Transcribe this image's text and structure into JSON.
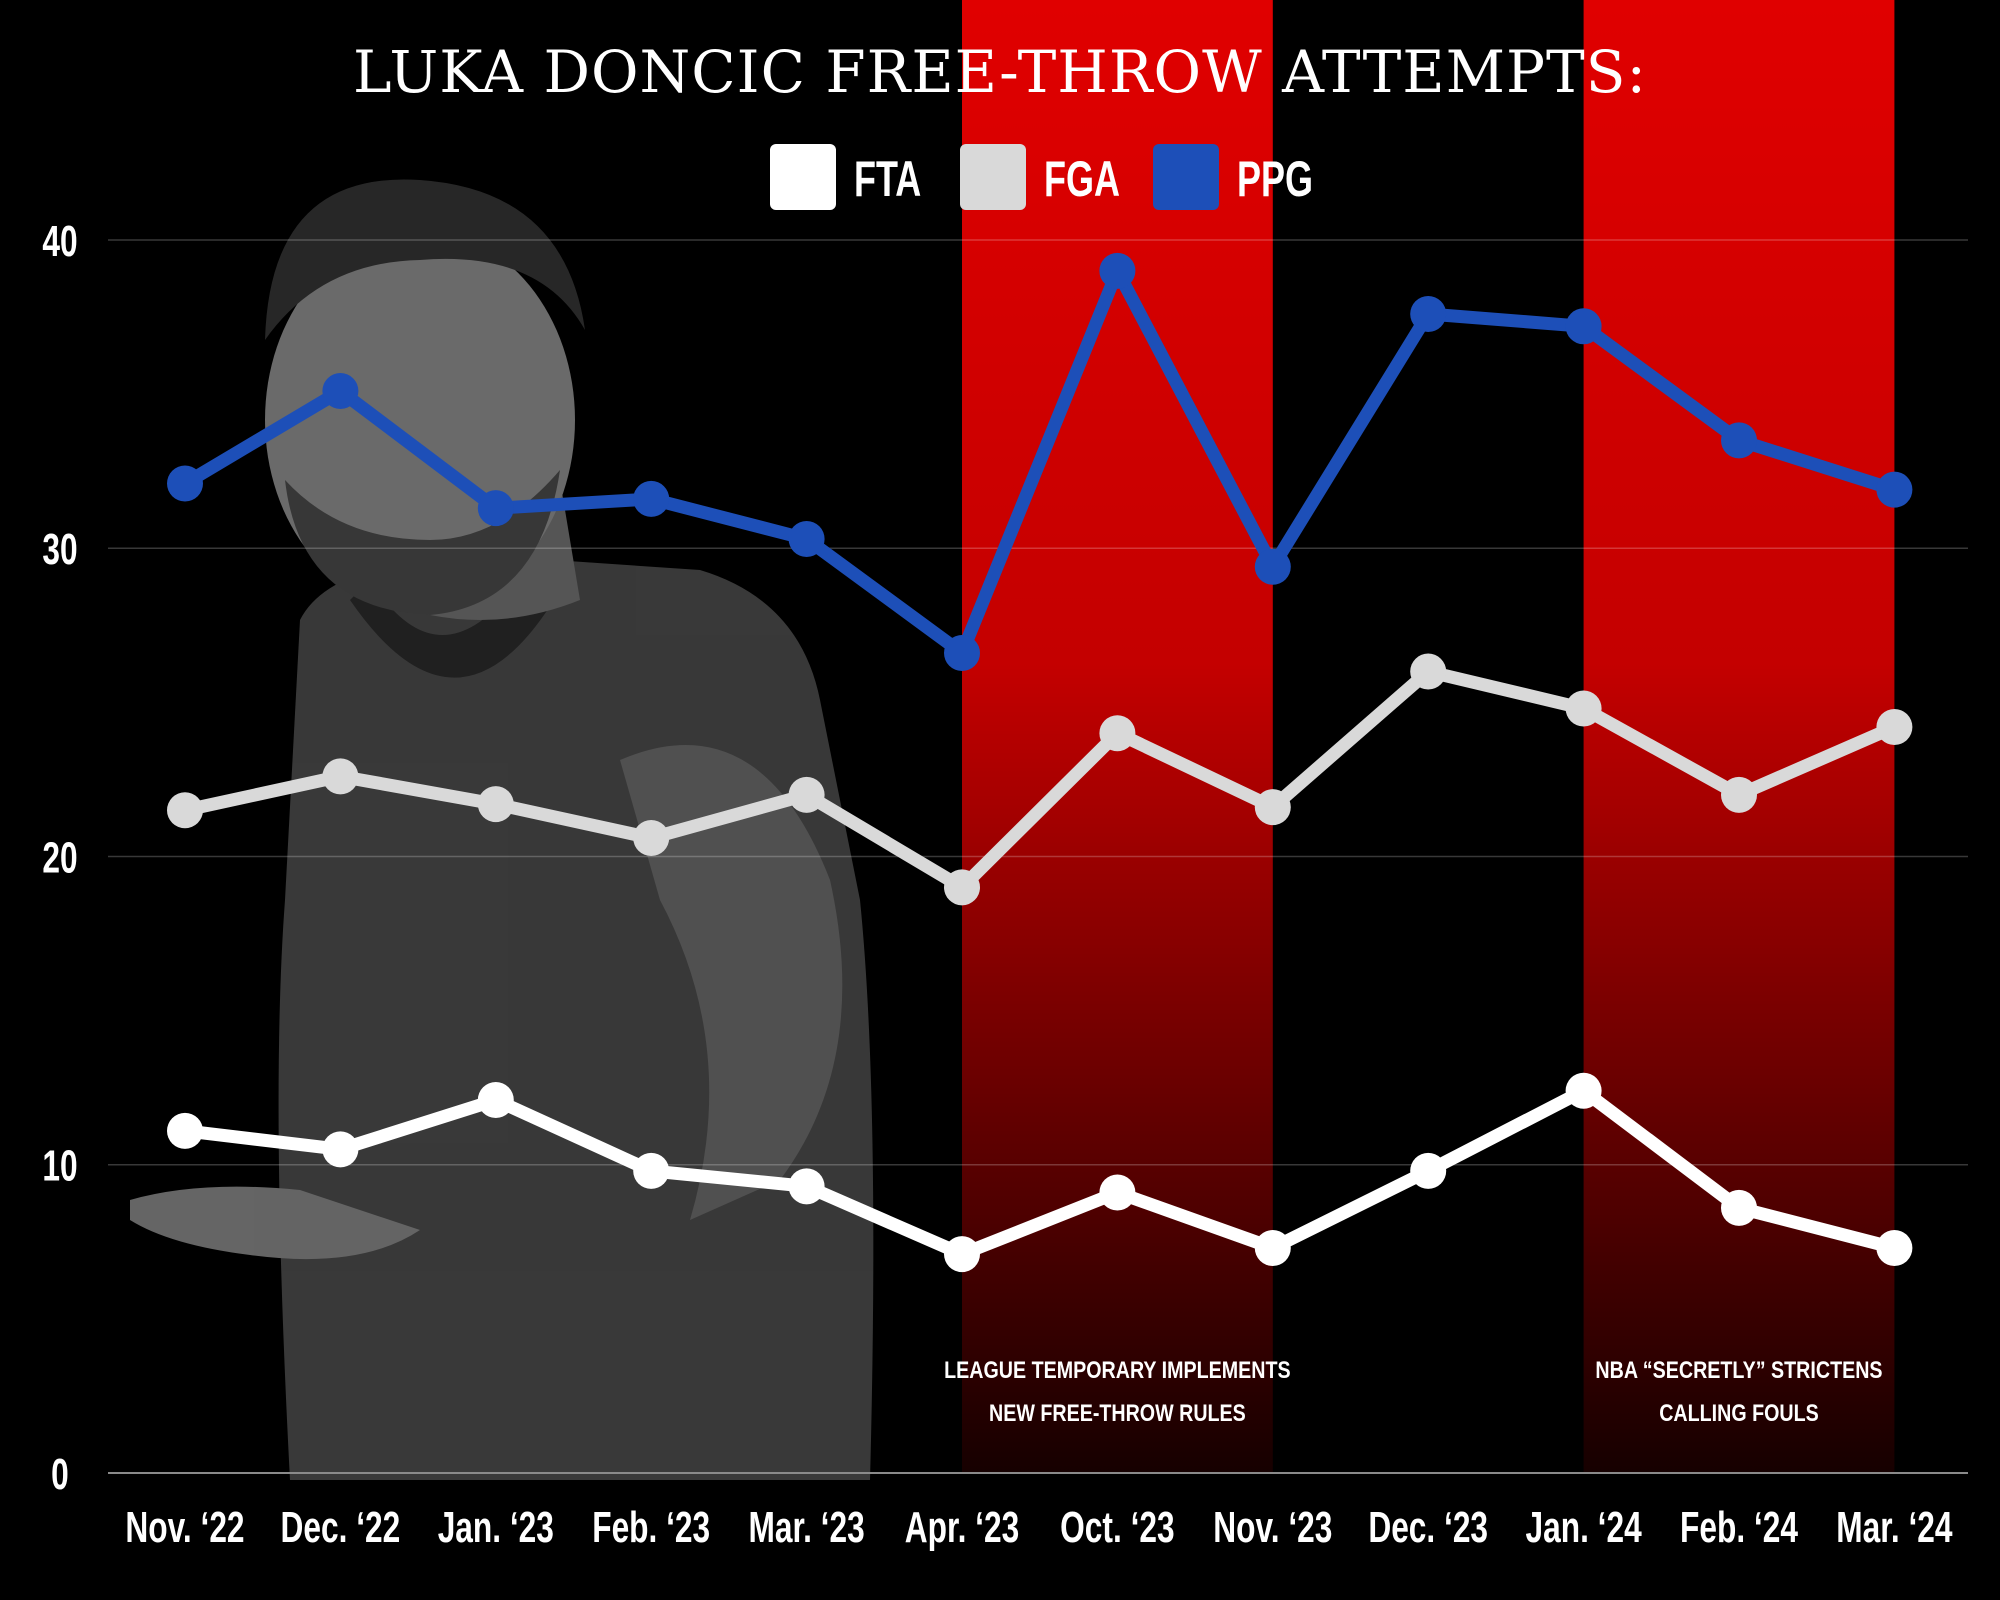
{
  "chart_data": {
    "type": "line",
    "title": "LUKA DONCIC FREE-THROW ATTEMPTS:",
    "categories": [
      "Nov. ‘22",
      "Dec. ‘22",
      "Jan. ‘23",
      "Feb. ‘23",
      "Mar. ‘23",
      "Apr. ‘23",
      "Oct. ‘23",
      "Nov. ‘23",
      "Dec. ‘23",
      "Jan. ‘24",
      "Feb. ‘24",
      "Mar. ‘24"
    ],
    "ylim": [
      0,
      40
    ],
    "yticks": [
      "0",
      "10",
      "20",
      "30",
      "40"
    ],
    "ytick_values": [
      0,
      10,
      20,
      30,
      40
    ],
    "grid": true,
    "legend_position": "top-center",
    "series": [
      {
        "name": "FTA",
        "color": "#ffffff",
        "values": [
          11.1,
          10.5,
          12.1,
          9.8,
          9.3,
          7.1,
          9.1,
          7.3,
          9.8,
          12.4,
          8.6,
          7.3
        ]
      },
      {
        "name": "FGA",
        "color": "#d9d9d9",
        "values": [
          21.5,
          22.6,
          21.7,
          20.6,
          22.0,
          19.0,
          24.0,
          21.6,
          26.0,
          24.8,
          22.0,
          24.2
        ]
      },
      {
        "name": "PPG",
        "color": "#1d4fb8",
        "values": [
          32.1,
          35.1,
          31.3,
          31.6,
          30.3,
          26.6,
          39.0,
          29.4,
          37.6,
          37.2,
          33.5,
          31.9
        ]
      }
    ],
    "highlight_bands": [
      {
        "from": "Apr. ‘23",
        "to": "Nov. ‘23",
        "color": "#d60000",
        "annotation": [
          "LEAGUE TEMPORARY IMPLEMENTS",
          "NEW FREE-THROW RULES"
        ]
      },
      {
        "from": "Jan. ‘24",
        "to": "Mar. ‘24",
        "color": "#d60000",
        "annotation": [
          "NBA “SECRETLY” STRICTENS",
          "CALLING FOULS"
        ]
      }
    ]
  }
}
